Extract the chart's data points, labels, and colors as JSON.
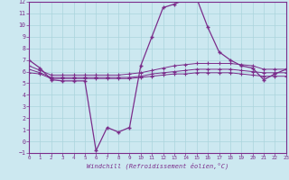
{
  "xlabel": "Windchill (Refroidissement éolien,°C)",
  "bg_color": "#cce8f0",
  "line_color": "#7b2d8b",
  "xlim": [
    0,
    23
  ],
  "ylim": [
    -1,
    12
  ],
  "yticks": [
    -1,
    0,
    1,
    2,
    3,
    4,
    5,
    6,
    7,
    8,
    9,
    10,
    11,
    12
  ],
  "xticks": [
    0,
    1,
    2,
    3,
    4,
    5,
    6,
    7,
    8,
    9,
    10,
    11,
    12,
    13,
    14,
    15,
    16,
    17,
    18,
    19,
    20,
    21,
    22,
    23
  ],
  "line1_x": [
    0,
    1,
    2,
    3,
    4,
    5,
    6,
    7,
    8,
    9,
    10,
    11,
    12,
    13,
    14,
    15,
    16,
    17,
    18,
    19,
    20,
    21,
    22,
    23
  ],
  "line1_y": [
    7.0,
    6.3,
    5.3,
    5.2,
    5.2,
    5.2,
    -0.8,
    1.2,
    0.8,
    1.2,
    6.5,
    9.0,
    11.5,
    11.8,
    12.2,
    12.3,
    9.8,
    7.7,
    7.0,
    6.5,
    6.3,
    5.3,
    5.8,
    6.2
  ],
  "line2_x": [
    0,
    1,
    2,
    3,
    4,
    5,
    6,
    7,
    8,
    9,
    10,
    11,
    12,
    13,
    14,
    15,
    16,
    17,
    18,
    19,
    20,
    21,
    22,
    23
  ],
  "line2_y": [
    6.5,
    6.1,
    5.7,
    5.7,
    5.7,
    5.7,
    5.7,
    5.7,
    5.7,
    5.8,
    5.9,
    6.1,
    6.3,
    6.5,
    6.6,
    6.7,
    6.7,
    6.7,
    6.7,
    6.6,
    6.5,
    6.2,
    6.2,
    6.2
  ],
  "line3_x": [
    0,
    1,
    2,
    3,
    4,
    5,
    6,
    7,
    8,
    9,
    10,
    11,
    12,
    13,
    14,
    15,
    16,
    17,
    18,
    19,
    20,
    21,
    22,
    23
  ],
  "line3_y": [
    6.2,
    5.9,
    5.5,
    5.5,
    5.5,
    5.5,
    5.5,
    5.5,
    5.5,
    5.5,
    5.6,
    5.8,
    5.9,
    6.0,
    6.1,
    6.2,
    6.2,
    6.2,
    6.2,
    6.1,
    6.0,
    5.9,
    5.9,
    5.9
  ],
  "line4_x": [
    0,
    1,
    2,
    3,
    4,
    5,
    6,
    7,
    8,
    9,
    10,
    11,
    12,
    13,
    14,
    15,
    16,
    17,
    18,
    19,
    20,
    21,
    22,
    23
  ],
  "line4_y": [
    5.9,
    5.8,
    5.4,
    5.4,
    5.4,
    5.4,
    5.4,
    5.4,
    5.4,
    5.4,
    5.5,
    5.6,
    5.7,
    5.8,
    5.8,
    5.9,
    5.9,
    5.9,
    5.9,
    5.8,
    5.7,
    5.6,
    5.6,
    5.6
  ]
}
